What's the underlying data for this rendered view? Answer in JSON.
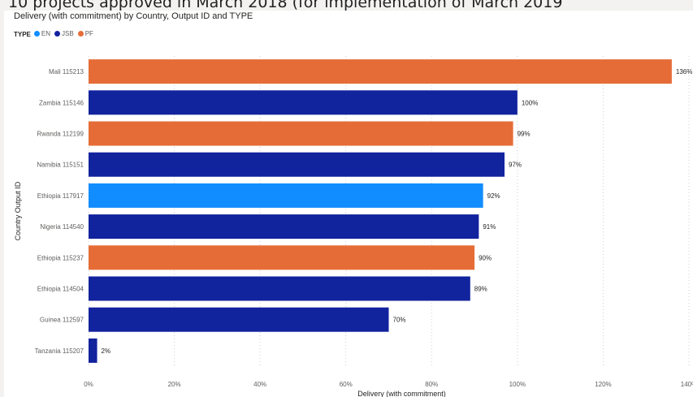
{
  "page_heading": "10 projects approved in March 2018 (for implementation of March 2019",
  "chart_data": {
    "type": "bar",
    "orientation": "horizontal",
    "title": "Delivery (with commitment) by Country, Output ID and TYPE",
    "xlabel": "Delivery (with commitment)",
    "ylabel": "Country Output ID",
    "xlim": [
      0,
      140
    ],
    "x_ticks": [
      "0%",
      "20%",
      "40%",
      "60%",
      "80%",
      "100%",
      "120%",
      "140%"
    ],
    "grid": "vertical-dotted",
    "legend": {
      "title": "TYPE",
      "placement": "top-left",
      "items": [
        {
          "name": "EN",
          "color": "#118dff"
        },
        {
          "name": "JSB",
          "color": "#12239e"
        },
        {
          "name": "PF",
          "color": "#e66c37"
        }
      ]
    },
    "categories": [
      "Mali 115213",
      "Zambia 115146",
      "Rwanda 112199",
      "Namibia 115151",
      "Ethiopia 117917",
      "Nigeria 114540",
      "Ethiopia 115237",
      "Ethiopia 114504",
      "Guinea 112597",
      "Tanzania 115207"
    ],
    "values": [
      136,
      100,
      99,
      97,
      92,
      91,
      90,
      89,
      70,
      2
    ],
    "data_labels": [
      "136%",
      "100%",
      "99%",
      "97%",
      "92%",
      "91%",
      "90%",
      "89%",
      "70%",
      "2%"
    ],
    "types": [
      "PF",
      "JSB",
      "PF",
      "JSB",
      "EN",
      "JSB",
      "PF",
      "JSB",
      "JSB",
      "JSB"
    ]
  }
}
